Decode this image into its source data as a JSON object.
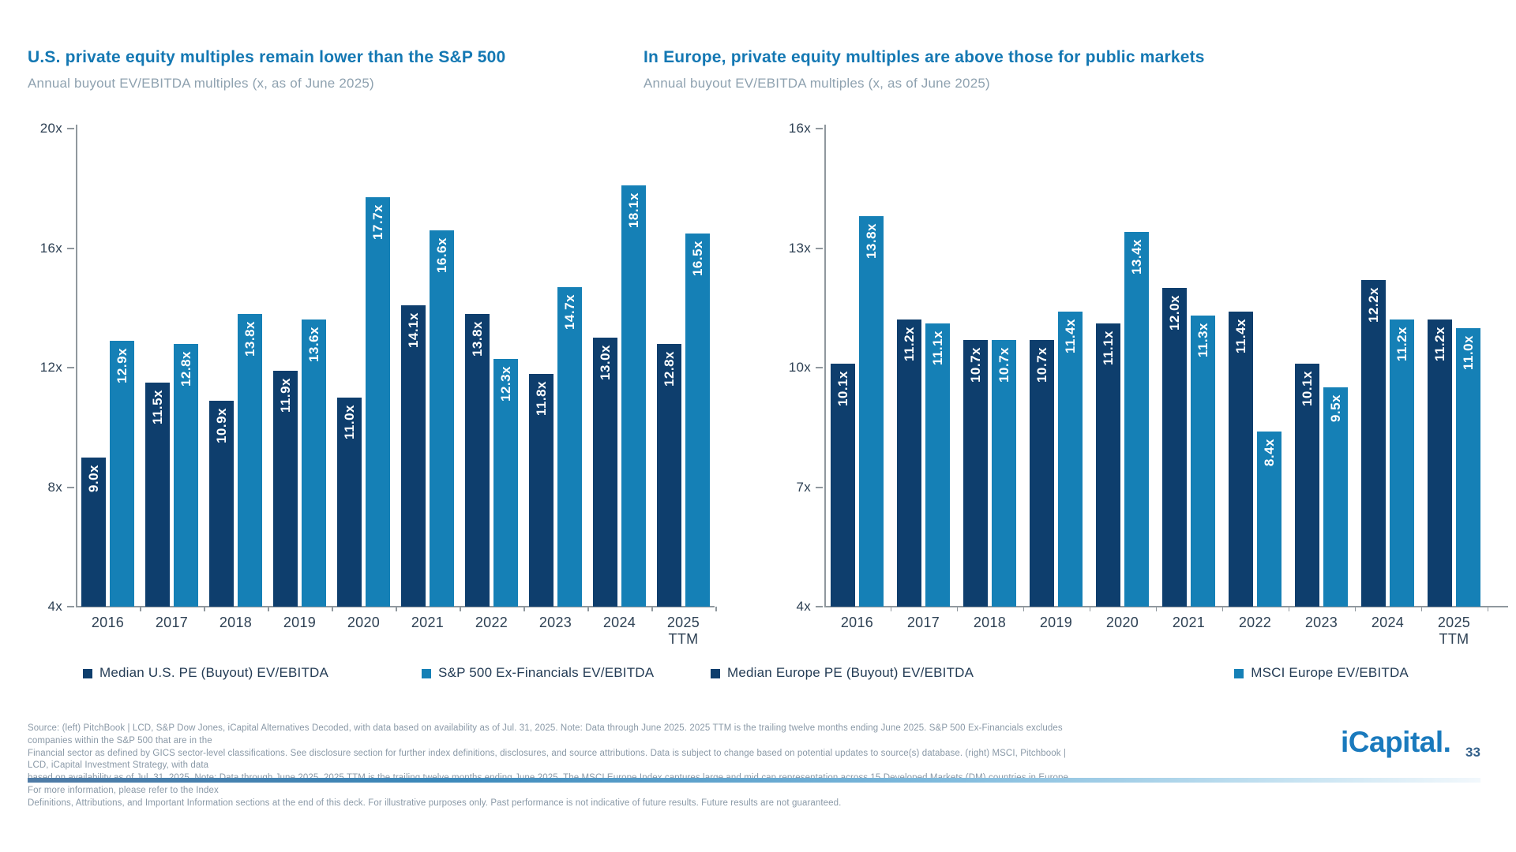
{
  "chart_data": [
    {
      "type": "bar",
      "title": "U.S. private equity multiples remain lower than the S&P 500",
      "subtitle": "Annual buyout EV/EBITDA multiples (x, as of June 2025)",
      "categories": [
        "2016",
        "2017",
        "2018",
        "2019",
        "2020",
        "2021",
        "2022",
        "2023",
        "2024",
        "2025\nTTM"
      ],
      "series": [
        {
          "name": "Median U.S. PE (Buyout) EV/EBITDA",
          "color": "#0e3e6d",
          "values": [
            9.0,
            11.5,
            10.9,
            11.9,
            11.0,
            14.1,
            13.8,
            11.8,
            13.0,
            12.8
          ]
        },
        {
          "name": "S&P 500 Ex-Financials EV/EBITDA",
          "color": "#1580b6",
          "values": [
            12.9,
            12.8,
            13.8,
            13.6,
            17.7,
            16.6,
            12.3,
            14.7,
            18.1,
            16.5
          ]
        }
      ],
      "ylim": [
        4,
        20
      ],
      "yticks": [
        4,
        8,
        12,
        16,
        20
      ],
      "ytick_suffix": "x",
      "value_label_suffix": "x",
      "legend_position": "bottom",
      "grid": false
    },
    {
      "type": "bar",
      "title": "In Europe, private equity multiples are above those for public markets",
      "subtitle": "Annual buyout EV/EBITDA multiples (x, as of June 2025)",
      "categories": [
        "2016",
        "2017",
        "2018",
        "2019",
        "2020",
        "2021",
        "2022",
        "2023",
        "2024",
        "2025\nTTM"
      ],
      "series": [
        {
          "name": "Median Europe PE (Buyout) EV/EBITDA",
          "color": "#0e3e6d",
          "values": [
            10.1,
            11.2,
            10.7,
            10.7,
            11.1,
            12.0,
            11.4,
            10.1,
            12.2,
            11.2
          ]
        },
        {
          "name": "MSCI Europe EV/EBITDA",
          "color": "#1580b6",
          "values": [
            13.8,
            11.1,
            10.7,
            11.4,
            13.4,
            11.3,
            8.4,
            9.5,
            11.2,
            11.0
          ]
        }
      ],
      "ylim": [
        4,
        16
      ],
      "yticks": [
        4,
        7,
        10,
        13,
        16
      ],
      "ytick_suffix": "x",
      "value_label_suffix": "x",
      "legend_position": "bottom",
      "grid": false
    }
  ],
  "colors": {
    "title": "#1478b3",
    "bar_dark": "#0e3e6d",
    "bar_light": "#1580b6",
    "axis": "#90989e",
    "footer_text": "#8a99a7",
    "brand": "#1a7abd"
  },
  "footer": {
    "lines": [
      "Source: (left) PitchBook | LCD, S&P Dow Jones, iCapital Alternatives Decoded, with data based on availability as of Jul. 31, 2025. Note: Data through June 2025. 2025 TTM is the trailing twelve months ending June 2025. S&P 500 Ex-Financials excludes companies within the S&P 500 that are in the",
      "Financial sector as defined by GICS sector-level classifications. See disclosure section for further index definitions, disclosures, and source attributions. Data is subject to change based on potential updates to source(s) database. (right) MSCI, Pitchbook | LCD, iCapital Investment Strategy, with data",
      "based on availability as of Jul. 31, 2025. Note: Data through June 2025. 2025 TTM is the trailing twelve months ending June 2025. The MSCI Europe Index captures large and mid cap representation across 15 Developed Markets (DM) countries in Europe. For more information, please refer to the Index",
      "Definitions, Attributions, and Important Information sections at the end of this deck. For illustrative purposes only. Past performance is not indicative of future results. Future results are not guaranteed."
    ]
  },
  "logo": {
    "text": "iCapital.",
    "page": "33"
  }
}
